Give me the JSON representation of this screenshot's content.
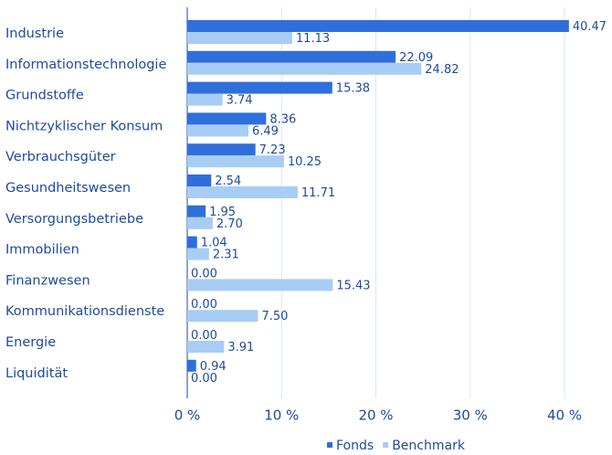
{
  "chart_data": {
    "type": "bar",
    "orientation": "horizontal",
    "categories": [
      "Industrie",
      "Informationstechnologie",
      "Grundstoffe",
      "Nichtzyklischer Konsum",
      "Verbrauchsgüter",
      "Gesundheitswesen",
      "Versorgungsbetriebe",
      "Immobilien",
      "Finanzwesen",
      "Kommunikationsdienste",
      "Energie",
      "Liquidität"
    ],
    "series": [
      {
        "name": "Fonds",
        "color": "#2f6fdb",
        "values": [
          40.47,
          22.09,
          15.38,
          8.36,
          7.23,
          2.54,
          1.95,
          1.04,
          0,
          0,
          0,
          0.94
        ],
        "value_labels": [
          "40.47",
          "22.09",
          "15.38",
          "8.36",
          "7.23",
          "2.54",
          "1.95",
          "1.04",
          "0.00",
          "0.00",
          "0.00",
          "0.94"
        ]
      },
      {
        "name": "Benchmark",
        "color": "#a8cdf5",
        "values": [
          11.13,
          24.82,
          3.74,
          6.49,
          10.25,
          11.71,
          2.7,
          2.31,
          15.43,
          7.5,
          3.91,
          0
        ],
        "value_labels": [
          "11.13",
          "24.82",
          "3.74",
          "6.49",
          "10.25",
          "11.71",
          "2.70",
          "2.31",
          "15.43",
          "7.50",
          "3.91",
          "0.00"
        ]
      }
    ],
    "xlim": [
      0,
      40.5
    ],
    "xticks": [
      {
        "value": 0,
        "label": "0 %"
      },
      {
        "value": 10,
        "label": "10 %"
      },
      {
        "value": 20,
        "label": "20 %"
      },
      {
        "value": 30,
        "label": "30 %"
      },
      {
        "value": 40,
        "label": "40 %"
      }
    ],
    "grid": true,
    "legend": "bottom"
  }
}
